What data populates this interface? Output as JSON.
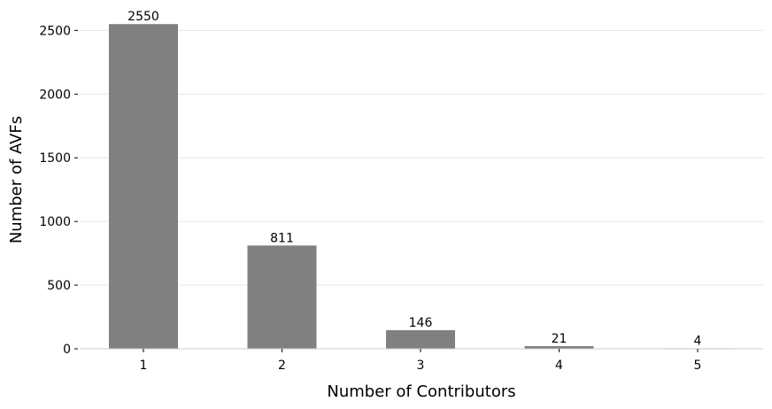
{
  "chart_data": {
    "type": "bar",
    "categories": [
      "1",
      "2",
      "3",
      "4",
      "5"
    ],
    "values": [
      2550,
      811,
      146,
      21,
      4
    ],
    "data_labels": [
      "2550",
      "811",
      "146",
      "21",
      "4"
    ],
    "title": "",
    "xlabel": "Number of Contributors",
    "ylabel": "Number of AVFs",
    "ylim": [
      0,
      2600
    ],
    "yticks": [
      0,
      500,
      1000,
      1500,
      2000,
      2500
    ],
    "ytick_labels": [
      "0",
      "500",
      "1000",
      "1500",
      "2000",
      "2500"
    ],
    "grid": "horizontal",
    "legend": "none",
    "colors": {
      "bar": "#808080",
      "grid": "#e6e6e6",
      "axis": "#cccccc",
      "text": "#000000"
    }
  }
}
